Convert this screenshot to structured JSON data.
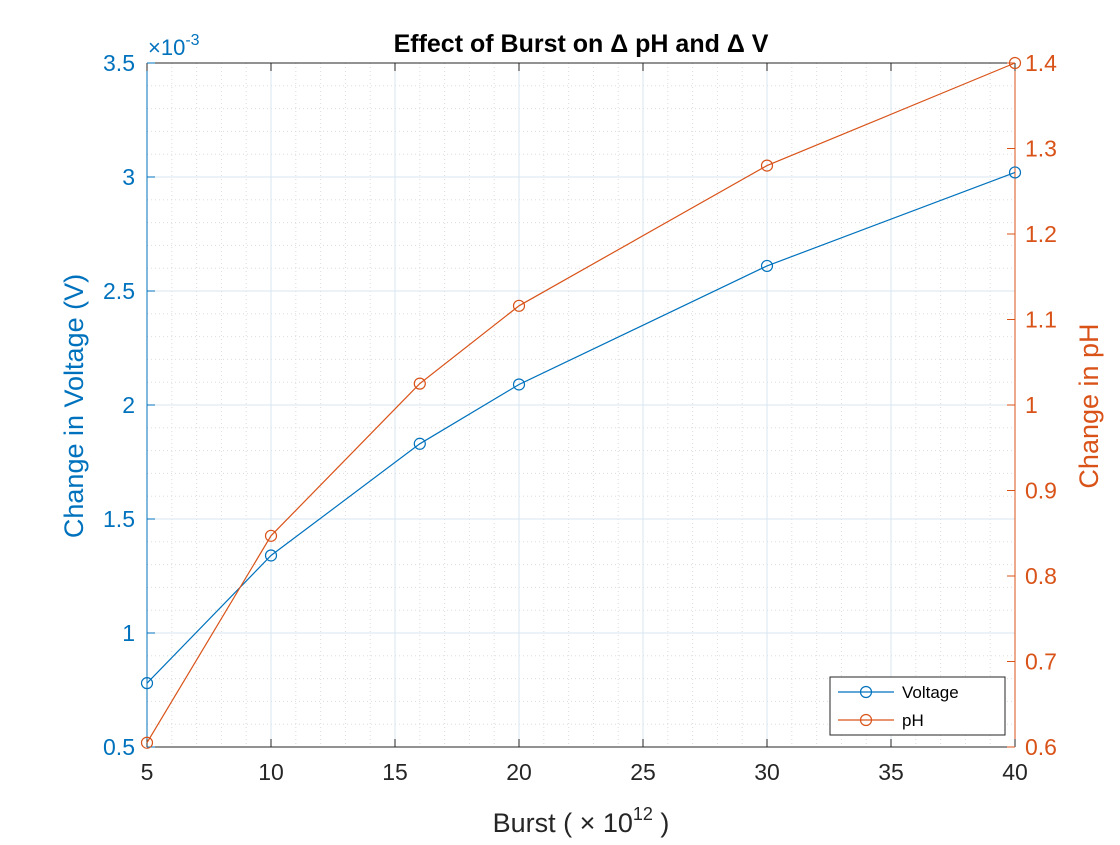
{
  "chart_data": {
    "type": "line",
    "title": "Effect of Burst on Δ pH and Δ V",
    "xlabel": "Burst ( × 10",
    "xlabel_exponent": "12",
    "xlabel_suffix": " )",
    "ylabel_left": "Change in Voltage (V)",
    "ylabel_right": "Change in pH",
    "y_left_exponent_prefix": "×10",
    "y_left_exponent": "-3",
    "xlim": [
      5,
      40
    ],
    "ylim_left": [
      0.5,
      3.5
    ],
    "ylim_right": [
      0.6,
      1.4
    ],
    "x_ticks": [
      "5",
      "10",
      "15",
      "20",
      "25",
      "30",
      "35",
      "40"
    ],
    "y_left_ticks": [
      "0.5",
      "1",
      "1.5",
      "2",
      "2.5",
      "3",
      "3.5"
    ],
    "y_right_ticks": [
      "0.6",
      "0.7",
      "0.8",
      "0.9",
      "1",
      "1.1",
      "1.2",
      "1.3",
      "1.4"
    ],
    "grid": true,
    "minor_grid": true,
    "legend_position": "bottom-right",
    "series": [
      {
        "name": "Voltage",
        "axis": "left",
        "color": "#0072BD",
        "marker": "circle",
        "x": [
          5,
          10,
          16,
          20,
          30,
          40
        ],
        "y": [
          0.78,
          1.34,
          1.83,
          2.09,
          2.61,
          3.02
        ]
      },
      {
        "name": "pH",
        "axis": "right",
        "color": "#D95319",
        "marker": "circle",
        "x": [
          5,
          10,
          16,
          20,
          30,
          40
        ],
        "y": [
          0.605,
          0.847,
          1.025,
          1.116,
          1.28,
          1.4
        ]
      }
    ]
  }
}
